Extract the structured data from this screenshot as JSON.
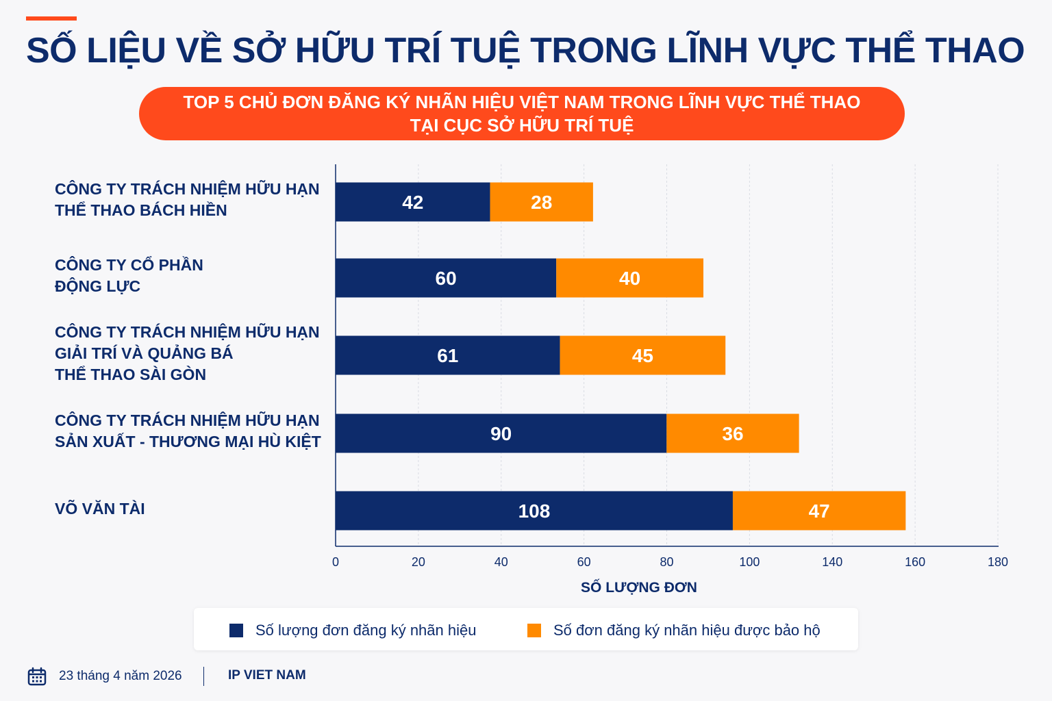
{
  "title": "SỐ LIỆU VỀ SỞ HỮU TRÍ TUỆ TRONG LĨNH VỰC THỂ THAO",
  "banner": {
    "line1": "TOP 5 CHỦ ĐƠN ĐĂNG KÝ NHÃN HIỆU VIỆT NAM TRONG LĨNH VỰC THỂ THAO",
    "line2": "TẠI CỤC SỞ HỮU TRÍ TUỆ"
  },
  "colors": {
    "navy": "#0d2b6b",
    "orange": "#ff8a00",
    "accent": "#ff4a1c"
  },
  "chart_data": {
    "type": "bar",
    "orientation": "horizontal",
    "stacked": true,
    "categories": [
      [
        "CÔNG TY TRÁCH NHIỆM HỮU HẠN",
        "THỂ THAO BÁCH HIỀN"
      ],
      [
        "CÔNG TY CỔ PHẦN",
        "ĐỘNG LỰC"
      ],
      [
        "CÔNG TY TRÁCH NHIỆM HỮU HẠN",
        "GIẢI TRÍ VÀ QUẢNG BÁ",
        "THỂ THAO SÀI GÒN"
      ],
      [
        "CÔNG TY TRÁCH NHIỆM HỮU HẠN",
        "SẢN XUẤT - THƯƠNG MẠI HÙ KIỆT"
      ],
      [
        "VÕ VĂN TÀI"
      ]
    ],
    "series": [
      {
        "name": "Số lượng đơn đăng ký nhãn hiệu",
        "color": "#0d2b6b",
        "values": [
          42,
          60,
          61,
          90,
          108
        ]
      },
      {
        "name": "Số đơn đăng ký nhãn hiệu được bảo hộ",
        "color": "#ff8a00",
        "values": [
          28,
          40,
          45,
          36,
          47
        ]
      }
    ],
    "xlabel": "SỐ LƯỢNG ĐƠN",
    "xticks": [
      0,
      20,
      40,
      60,
      80,
      100,
      140,
      160,
      180
    ],
    "xlim": [
      0,
      180
    ],
    "grid": true,
    "legend": "bottom"
  },
  "footer": {
    "date": "23 tháng 4 năm 2026",
    "org": "IP VIET NAM"
  }
}
